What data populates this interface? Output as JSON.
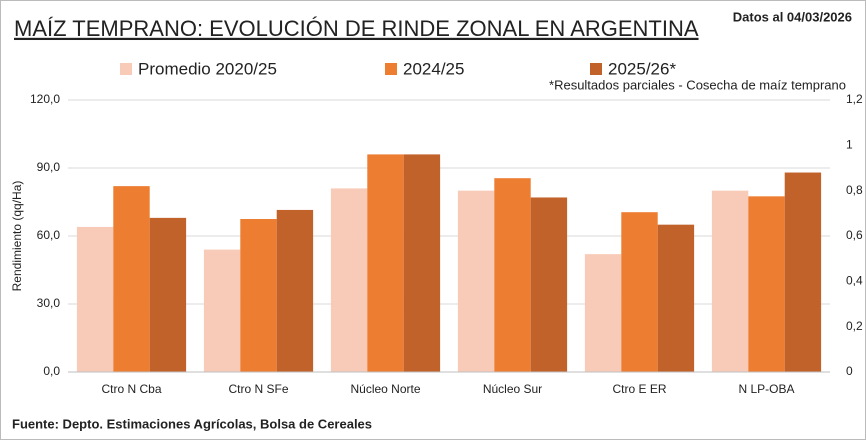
{
  "chart_data": {
    "type": "bar",
    "title": "MAÍZ TEMPRANO: EVOLUCIÓN DE RINDE ZONAL EN ARGENTINA",
    "subtitle": "Datos al 04/03/2026",
    "note": "*Resultados parciales - Cosecha de maíz temprano",
    "source": "Fuente: Depto. Estimaciones Agrícolas, Bolsa de Cereales",
    "y_label": "Rendimiento (qq/Ha)",
    "categories": [
      "Ctro N Cba",
      "Ctro N SFe",
      "Núcleo Norte",
      "Núcleo Sur",
      "Ctro E ER",
      "N LP-OBA"
    ],
    "series": [
      {
        "name": "Promedio 2020/25",
        "color": "#f8cbb8",
        "values": [
          64,
          54,
          81,
          80,
          52,
          80
        ]
      },
      {
        "name": "2024/25",
        "color": "#ed7d31",
        "values": [
          82,
          67.5,
          96,
          85.5,
          70.5,
          77.5
        ]
      },
      {
        "name": "2025/26*",
        "color": "#c0622a",
        "values": [
          68,
          71.5,
          96,
          77,
          65,
          88
        ]
      }
    ],
    "ylim": [
      0,
      120
    ],
    "yticks": [
      {
        "value": 0,
        "label": "0,0"
      },
      {
        "value": 30,
        "label": "30,0"
      },
      {
        "value": 60,
        "label": "60,0"
      },
      {
        "value": 90,
        "label": "90,0"
      },
      {
        "value": 120,
        "label": "120,0"
      }
    ],
    "y2lim": [
      0,
      1.2
    ],
    "y2ticks": [
      0,
      {
        "value": 0.2,
        "label": "0,2"
      },
      {
        "value": 0.4,
        "label": "0,4"
      },
      {
        "value": 0.6,
        "label": "0,6"
      },
      {
        "value": 0.8,
        "label": "0,8"
      },
      1,
      {
        "value": 1.2,
        "label": "1,2"
      }
    ],
    "grid": true
  }
}
